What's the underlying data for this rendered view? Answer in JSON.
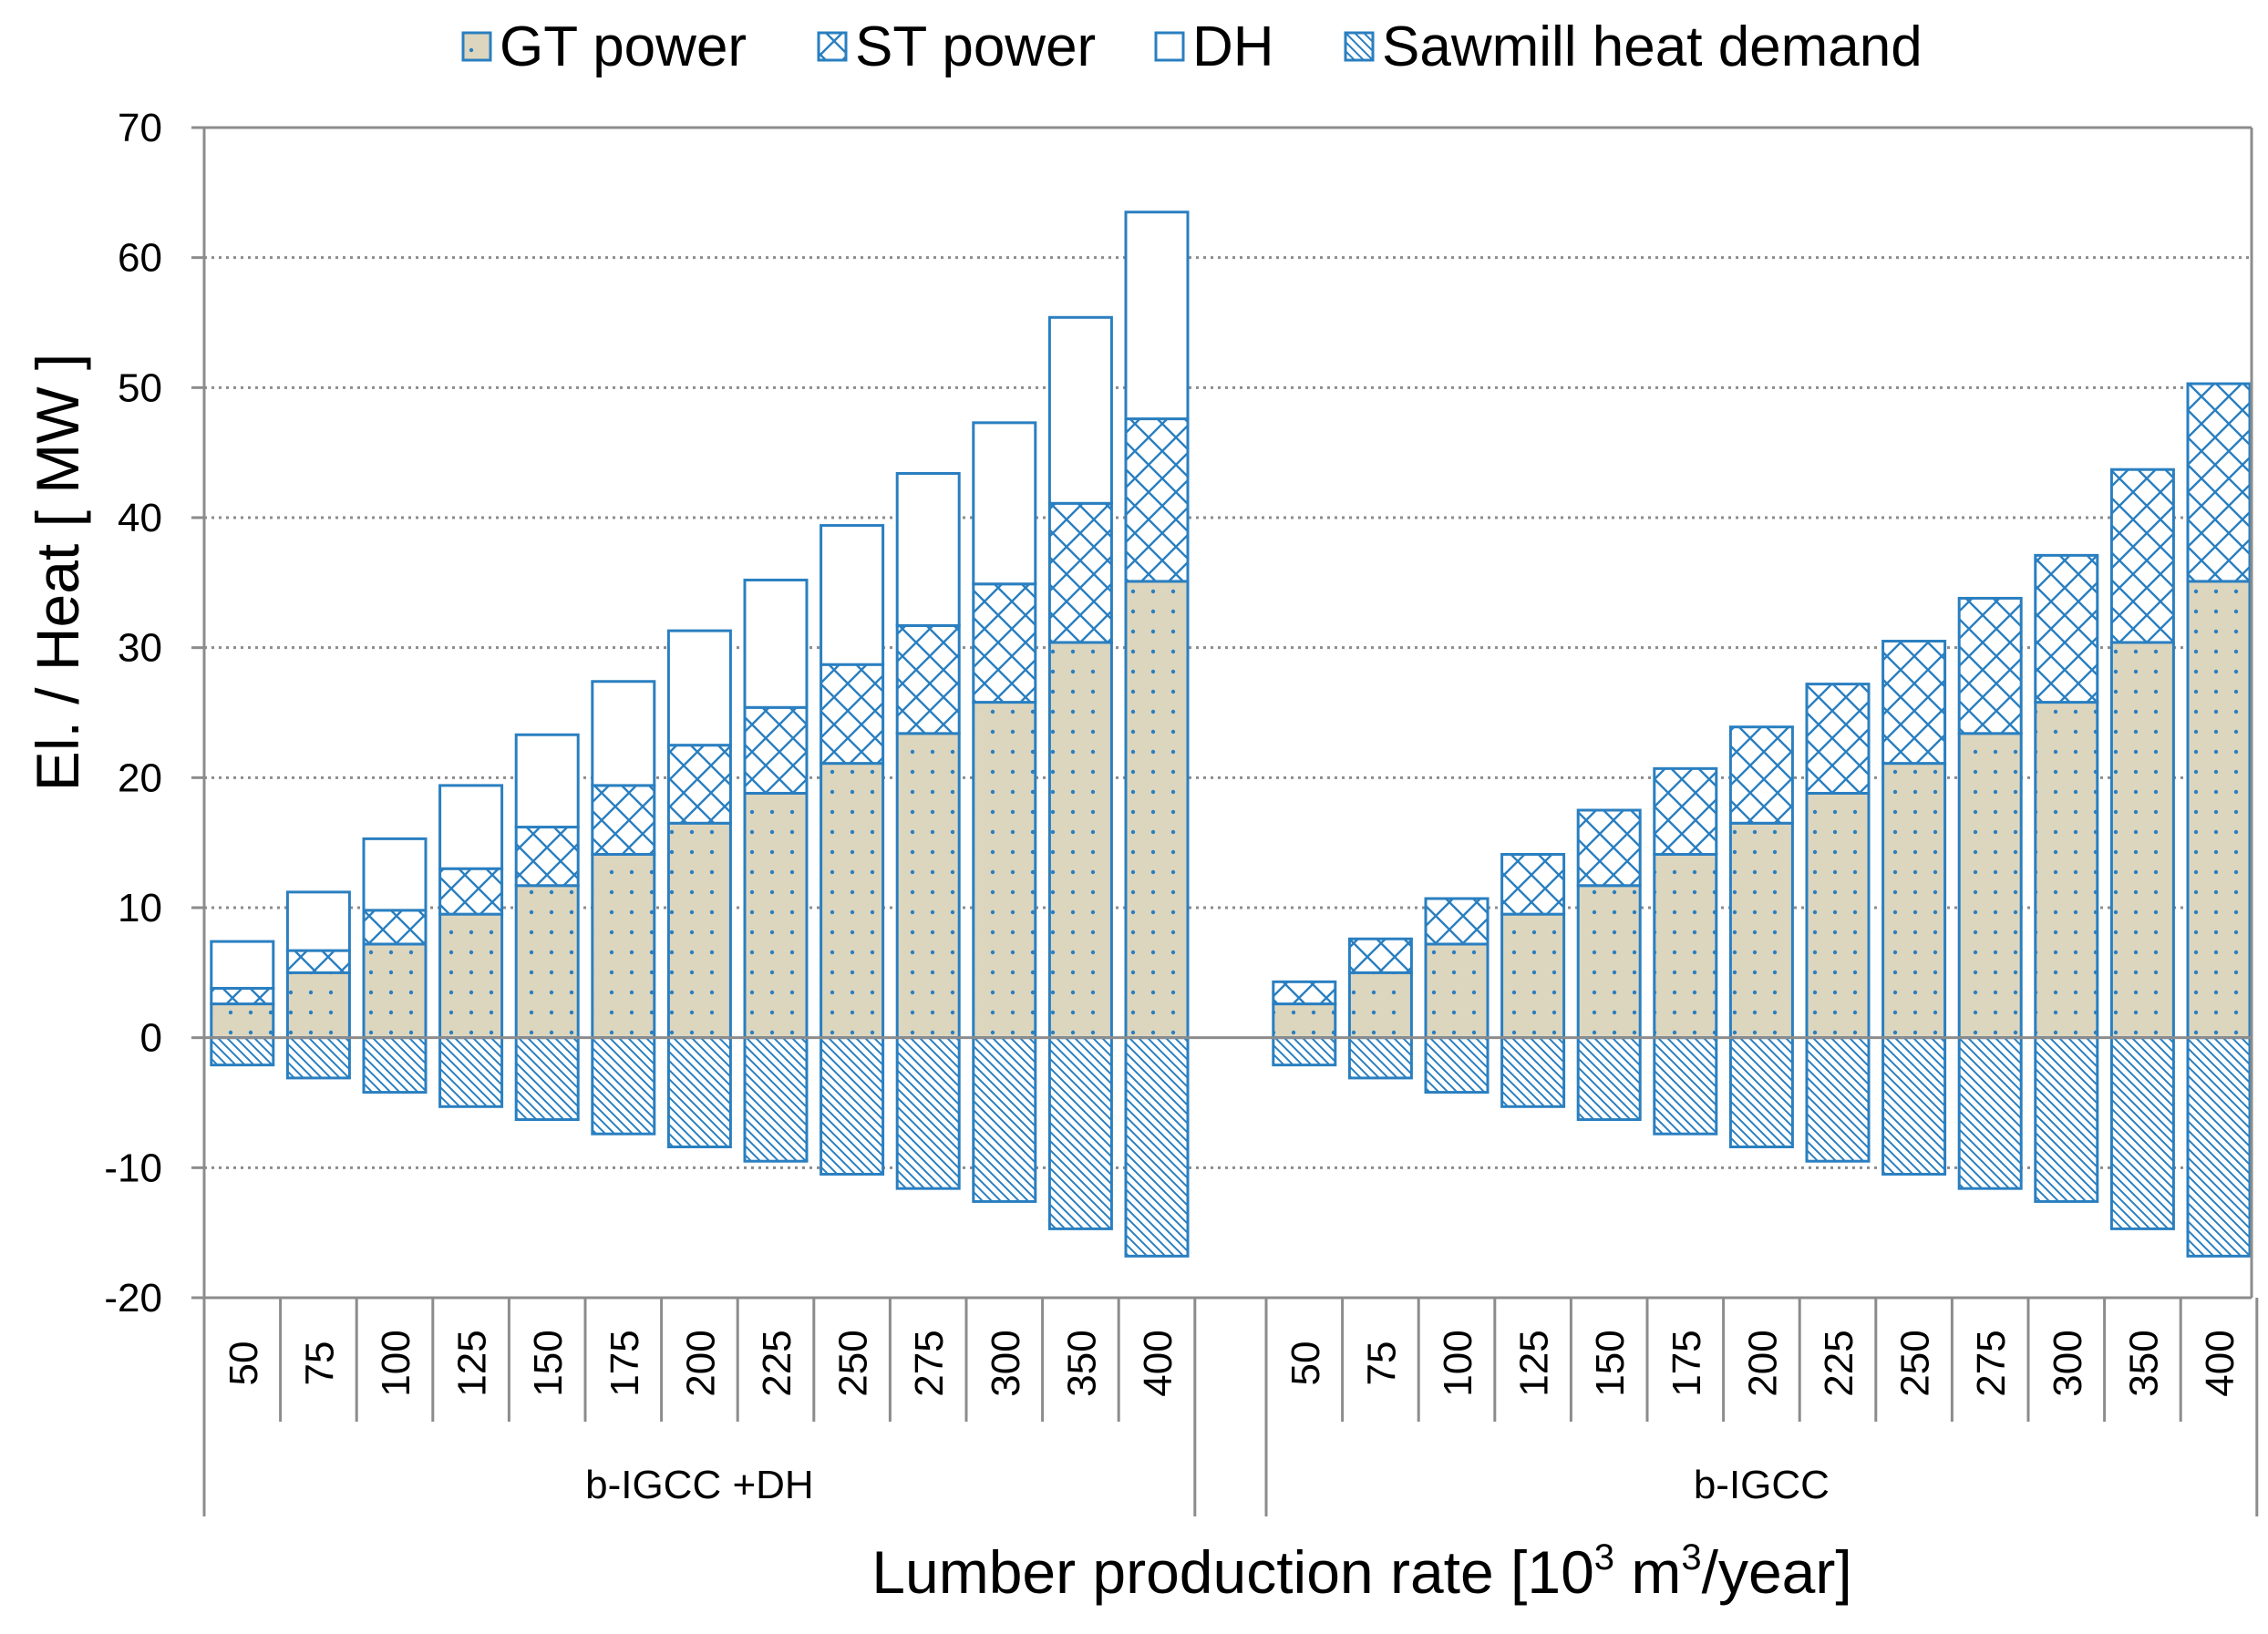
{
  "chart_data": {
    "type": "bar",
    "stacked": true,
    "ylabel": "El. /  Heat [ MW ]",
    "xlabel": "Lumber production rate [10",
    "xlabel_sup1": "3",
    "xlabel_mid": " m",
    "xlabel_sup2": "3",
    "xlabel_end": "/year]",
    "ylim": [
      -20,
      70
    ],
    "yticks": [
      "70",
      "60",
      "50",
      "40",
      "30",
      "20",
      "10",
      "0",
      "-10",
      "-20"
    ],
    "grid": "horizontal dotted",
    "legend_position": "top",
    "groups": [
      {
        "label": "b-IGCC +DH",
        "categories": [
          "50",
          "75",
          "100",
          "125",
          "150",
          "175",
          "200",
          "225",
          "250",
          "275",
          "300",
          "350",
          "400"
        ],
        "series": [
          {
            "name": "GT power",
            "values": [
              2.6,
              5.0,
              7.2,
              9.5,
              11.7,
              14.1,
              16.5,
              18.8,
              21.1,
              23.4,
              25.8,
              30.4,
              35.1
            ]
          },
          {
            "name": "ST power",
            "values": [
              1.2,
              1.7,
              2.6,
              3.5,
              4.5,
              5.3,
              6.0,
              6.6,
              7.6,
              8.3,
              9.1,
              10.7,
              12.5
            ]
          },
          {
            "name": "DH",
            "values": [
              3.6,
              4.5,
              5.5,
              6.4,
              7.1,
              8.0,
              8.8,
              9.8,
              10.7,
              11.7,
              12.4,
              14.3,
              15.9
            ]
          },
          {
            "name": "Sawmill heat demand",
            "values": [
              -2.1,
              -3.1,
              -4.2,
              -5.3,
              -6.3,
              -7.4,
              -8.4,
              -9.5,
              -10.5,
              -11.6,
              -12.6,
              -14.7,
              -16.8
            ]
          }
        ]
      },
      {
        "label": "b-IGCC",
        "categories": [
          "50",
          "75",
          "100",
          "125",
          "150",
          "175",
          "200",
          "225",
          "250",
          "275",
          "300",
          "350",
          "400"
        ],
        "series": [
          {
            "name": "GT power",
            "values": [
              2.6,
              5.0,
              7.2,
              9.5,
              11.7,
              14.1,
              16.5,
              18.8,
              21.1,
              23.4,
              25.8,
              30.4,
              35.1
            ]
          },
          {
            "name": "ST power",
            "values": [
              1.7,
              2.6,
              3.5,
              4.6,
              5.8,
              6.6,
              7.4,
              8.4,
              9.4,
              10.4,
              11.3,
              13.3,
              15.2
            ]
          },
          {
            "name": "DH",
            "values": [
              0,
              0,
              0,
              0,
              0,
              0,
              0,
              0,
              0,
              0,
              0,
              0,
              0
            ]
          },
          {
            "name": "Sawmill heat demand",
            "values": [
              -2.1,
              -3.1,
              -4.2,
              -5.3,
              -6.3,
              -7.4,
              -8.4,
              -9.5,
              -10.5,
              -11.6,
              -12.6,
              -14.7,
              -16.8
            ]
          }
        ]
      }
    ],
    "legend": [
      {
        "name": "GT power",
        "pattern": "dots"
      },
      {
        "name": "ST power",
        "pattern": "crosshatch"
      },
      {
        "name": "DH",
        "pattern": "none"
      },
      {
        "name": "Sawmill heat demand",
        "pattern": "diagonal"
      }
    ],
    "colors": {
      "bar_stroke": "#2a7fc0",
      "gt_fill": "#ddd6bf",
      "gt_dots": "#2a7fc0",
      "hatch": "#2a7fc0",
      "grid": "#8c8c8c",
      "axis": "#8c8c8c"
    }
  }
}
